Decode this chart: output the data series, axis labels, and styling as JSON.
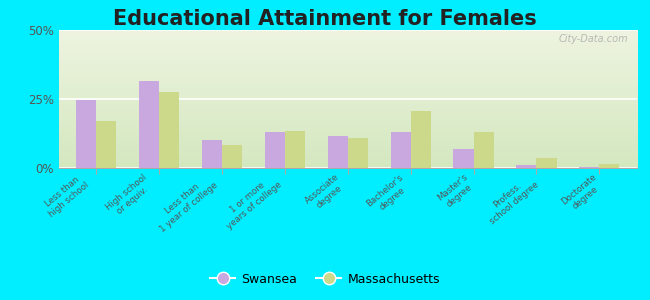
{
  "title": "Educational Attainment for Females",
  "categories": [
    "Less than\nhigh school",
    "High school\nor equiv.",
    "Less than\n1 year of college",
    "1 or more\nyears of college",
    "Associate\ndegree",
    "Bachelor's\ndegree",
    "Master's\ndegree",
    "Profess.\nschool degree",
    "Doctorate\ndegree"
  ],
  "swansea": [
    24.5,
    31.5,
    10.0,
    13.0,
    11.5,
    13.0,
    7.0,
    1.0,
    0.3
  ],
  "massachusetts": [
    17.0,
    27.5,
    8.5,
    13.5,
    11.0,
    20.5,
    13.0,
    3.5,
    1.5
  ],
  "swansea_color": "#c9a8e0",
  "massachusetts_color": "#ccd98a",
  "outer_bg": "#00eeff",
  "ylim": [
    0,
    50
  ],
  "yticks": [
    0,
    25,
    50
  ],
  "ytick_labels": [
    "0%",
    "25%",
    "50%"
  ],
  "title_fontsize": 15,
  "watermark": "City-Data.com"
}
